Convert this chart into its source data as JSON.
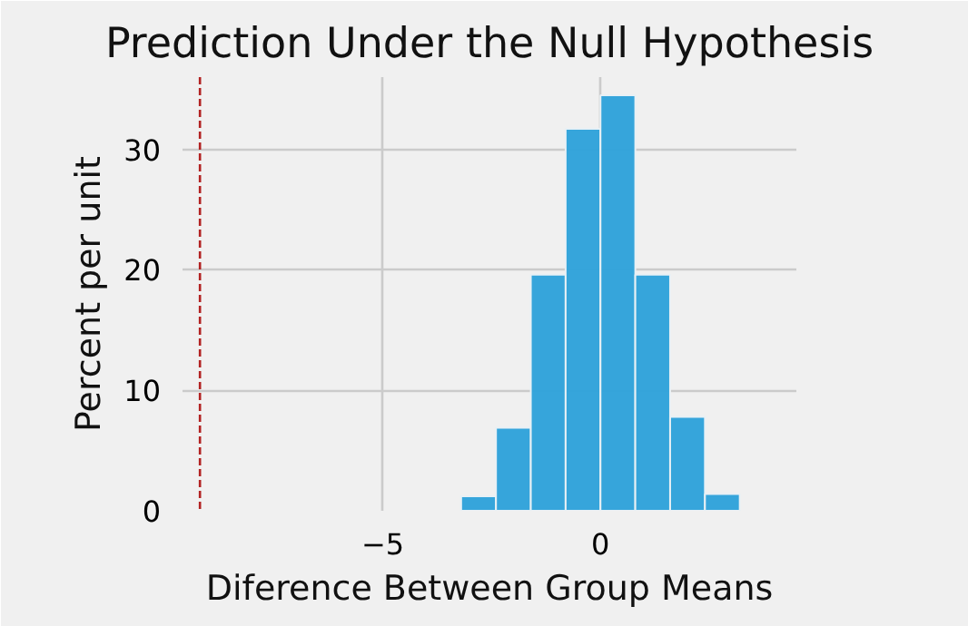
{
  "chart_data": {
    "type": "histogram",
    "title": "Prediction Under the Null Hypothesis",
    "xlabel": "Diference Between Group Means",
    "ylabel": "Percent per unit",
    "bins": [
      -3.2,
      -2.4,
      -1.6,
      -0.8,
      0,
      0.8,
      1.6,
      2.4,
      3.2
    ],
    "values": [
      1.2,
      6.9,
      19.6,
      31.7,
      34.5,
      19.6,
      7.8,
      1.4
    ],
    "color": "#30a2da",
    "xlim": [
      -9.6,
      4.5
    ],
    "ylim": [
      0,
      36
    ],
    "xticks": [
      {
        "value": -5,
        "label": "−5"
      },
      0
    ],
    "yticks": [
      0,
      10,
      20,
      30
    ],
    "ref_lines": [
      {
        "axis": "x",
        "value": -9.2,
        "color": "#b22222",
        "line_style": "dashed"
      }
    ],
    "grid": true
  }
}
